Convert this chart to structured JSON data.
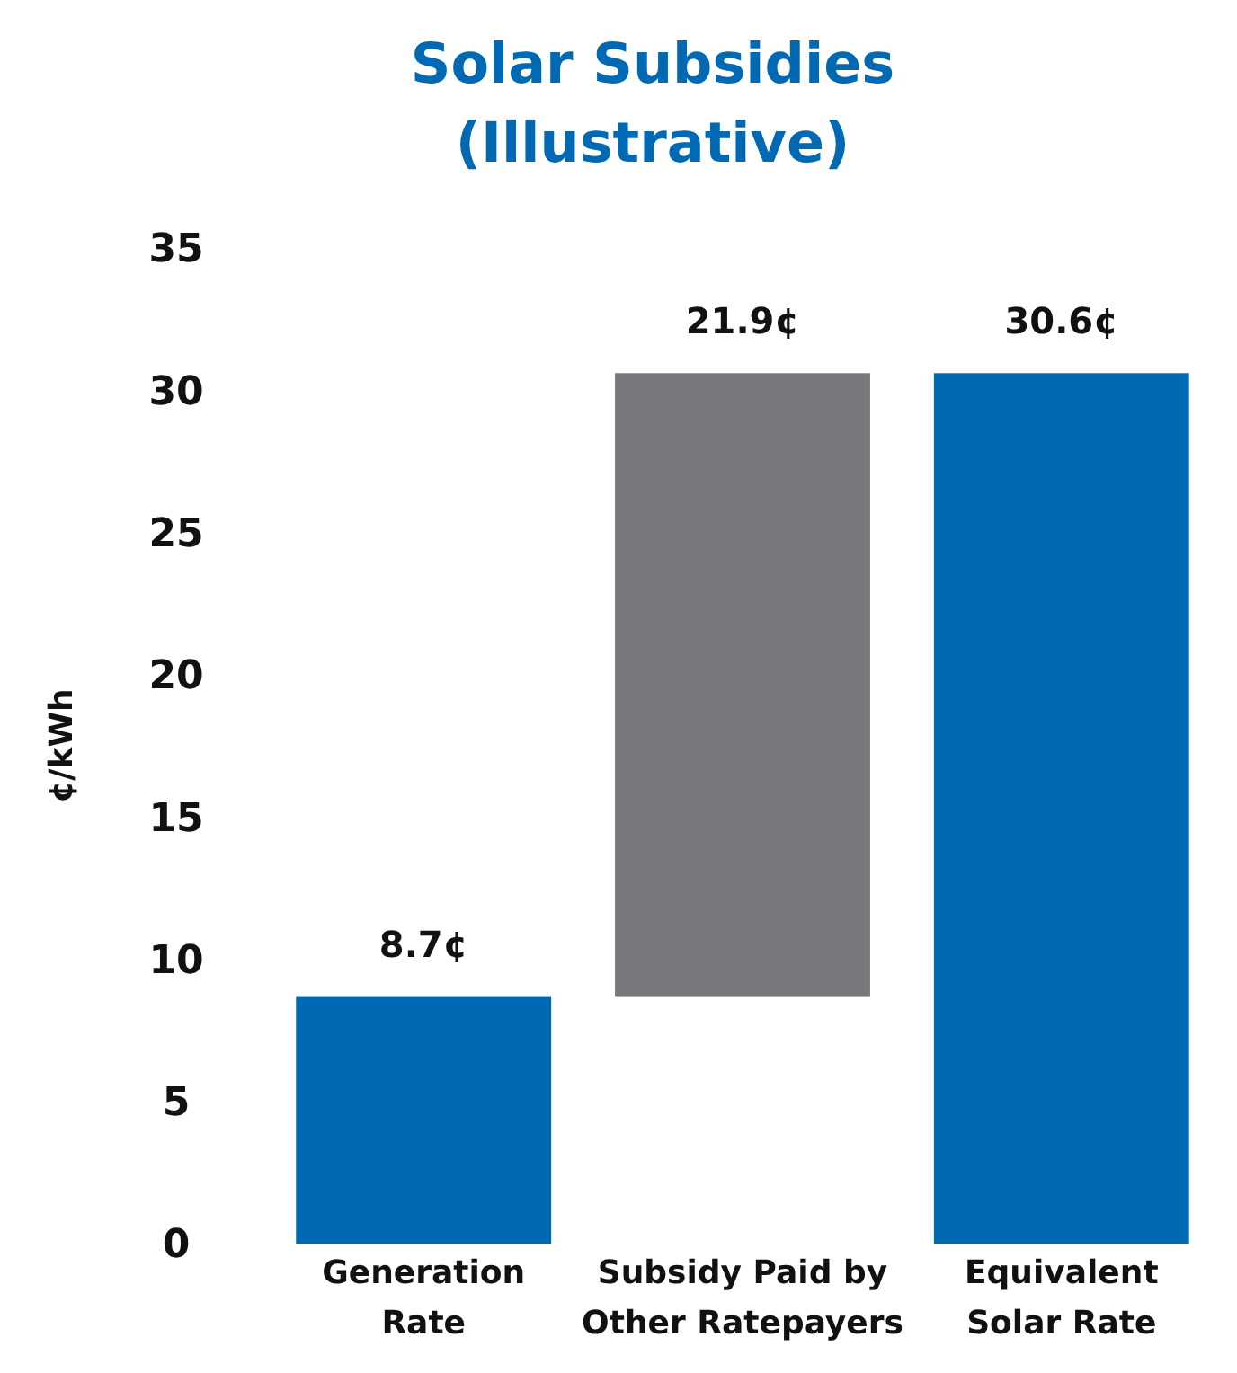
{
  "chart_data": {
    "type": "bar",
    "title": "Solar Subsidies (Illustrative)",
    "ylabel": "¢/kWh",
    "categories": [
      "Generation Rate",
      "Subsidy Paid by Other Ratepayers",
      "Equivalent Solar Rate"
    ],
    "values": [
      8.7,
      21.9,
      30.6
    ],
    "base": [
      0,
      8.7,
      0
    ],
    "colors": [
      "#0069b4",
      "#76787b",
      "#0069b4"
    ],
    "value_labels": [
      "8.7¢",
      "21.9¢",
      "30.6¢"
    ],
    "ylim": [
      0,
      35
    ],
    "yticks": [
      0,
      5,
      10,
      15,
      20,
      25,
      30,
      35
    ]
  }
}
